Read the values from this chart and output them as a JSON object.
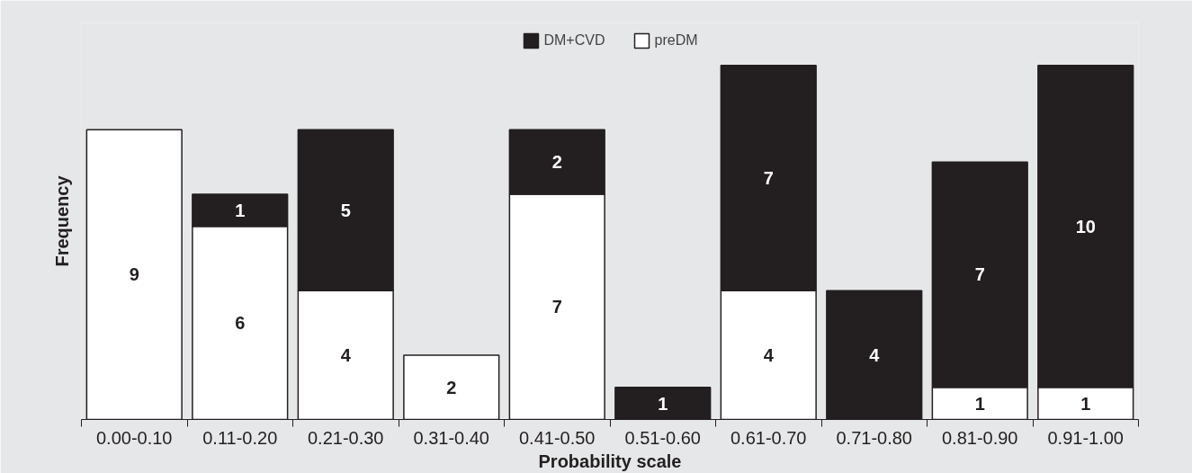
{
  "chart_data": {
    "type": "bar",
    "stacked": true,
    "xlabel": "Probability scale",
    "ylabel": "Frequency",
    "categories": [
      "0.00-0.10",
      "0.11-0.20",
      "0.21-0.30",
      "0.31-0.40",
      "0.41-0.50",
      "0.51-0.60",
      "0.61-0.70",
      "0.71-0.80",
      "0.81-0.90",
      "0.91-1.00"
    ],
    "series": [
      {
        "name": "preDM",
        "color": "#ffffff",
        "values": [
          9,
          6,
          4,
          2,
          7,
          null,
          4,
          null,
          1,
          1
        ]
      },
      {
        "name": "DM+CVD",
        "color": "#231f20",
        "values": [
          null,
          1,
          5,
          null,
          2,
          1,
          7,
          4,
          7,
          10
        ]
      }
    ],
    "data_labels": true,
    "legend": "top"
  }
}
